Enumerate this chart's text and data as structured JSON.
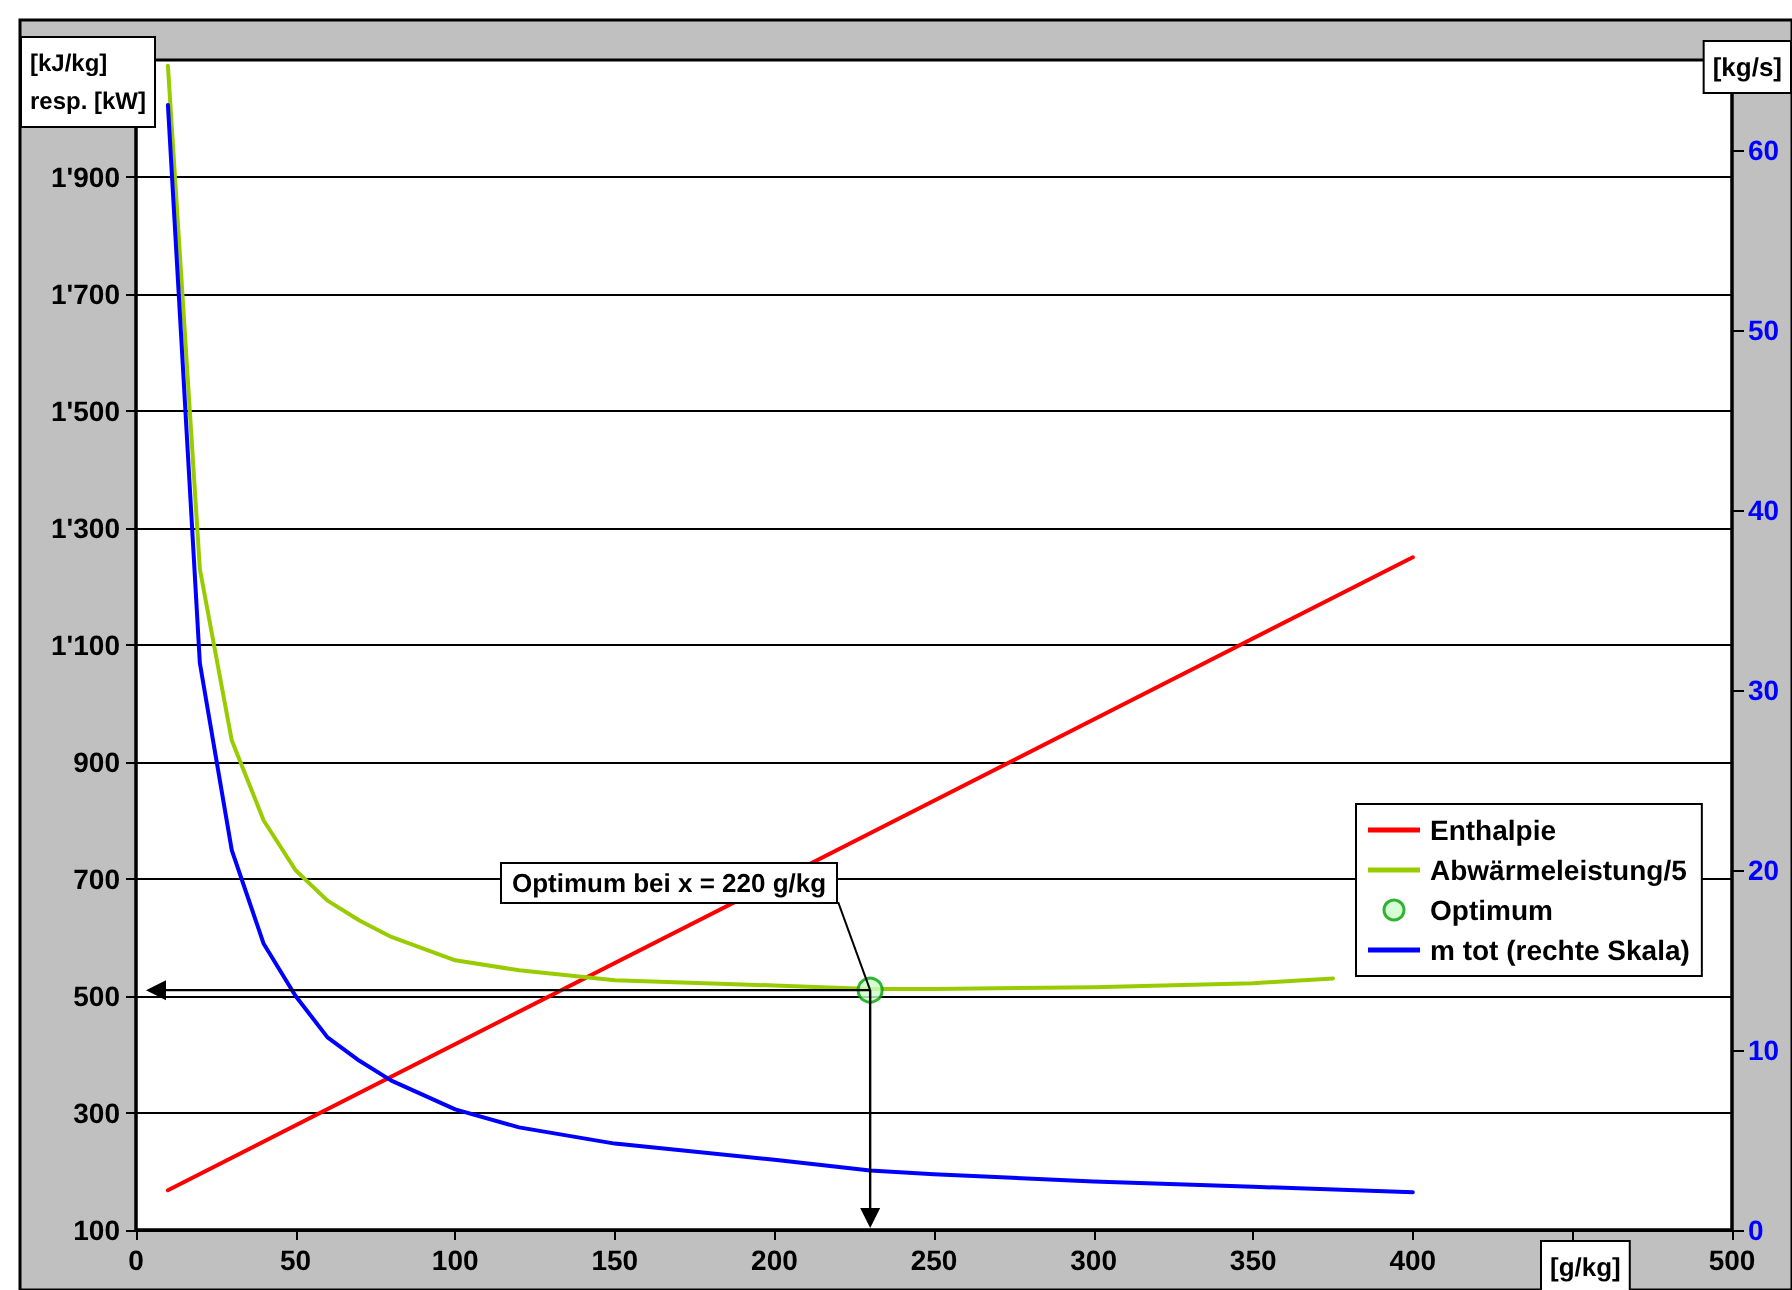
{
  "chart_data": {
    "type": "line",
    "xlabel": "[g/kg]",
    "ylabel": "[kJ/kg]\nresp. [kW]",
    "y2label": "[kg/s]",
    "xlim": [
      0,
      500
    ],
    "xticks": [
      0,
      50,
      100,
      150,
      200,
      250,
      300,
      350,
      400,
      {
        "value": 450,
        "label": null
      },
      500
    ],
    "ylim": [
      100,
      2100
    ],
    "yticks": [
      100,
      300,
      500,
      700,
      900,
      {
        "value": 1100,
        "label": "1'100"
      },
      {
        "value": 1300,
        "label": "1'300"
      },
      {
        "value": 1500,
        "label": "1'500"
      },
      {
        "value": 1700,
        "label": "1'700"
      },
      {
        "value": 1900,
        "label": "1'900"
      }
    ],
    "y2lim": [
      0,
      65
    ],
    "y2ticks": [
      0,
      10,
      20,
      30,
      40,
      50,
      60
    ],
    "grid": "y",
    "legend": "right",
    "marker": "none",
    "line_style": "solid",
    "annotations": [
      {
        "text": "Optimum bei x = 220 g/kg",
        "x": 230,
        "y": 510
      }
    ],
    "series": [
      {
        "name": "Enthalpie",
        "color": "#ff0000",
        "x": [
          10,
          400
        ],
        "values": [
          168,
          1250
        ]
      },
      {
        "name": "Abwärmeleistung/5",
        "color": "#99cc00",
        "x": [
          10,
          20,
          30,
          40,
          50,
          60,
          70,
          80,
          100,
          120,
          150,
          200,
          230,
          250,
          300,
          350,
          375
        ],
        "values": [
          2090,
          1230,
          937,
          800,
          715,
          663,
          629,
          601,
          561,
          544,
          527,
          518,
          512,
          512,
          515,
          522,
          530
        ]
      },
      {
        "name": "Optimum",
        "type": "scatter",
        "marker": "circle",
        "color": "#00a000",
        "x": [
          230
        ],
        "values": [
          510
        ]
      },
      {
        "name": "m tot (rechte Skala)",
        "color": "#0000ff",
        "axis": "y2",
        "x": [
          10,
          20,
          30,
          40,
          50,
          60,
          70,
          80,
          100,
          120,
          150,
          200,
          230,
          250,
          300,
          350,
          400
        ],
        "values": [
          62.5,
          31.5,
          21.1,
          15.9,
          13.0,
          10.7,
          9.4,
          8.3,
          6.7,
          5.7,
          4.8,
          3.9,
          3.3,
          3.1,
          2.7,
          2.4,
          2.1
        ]
      }
    ]
  }
}
